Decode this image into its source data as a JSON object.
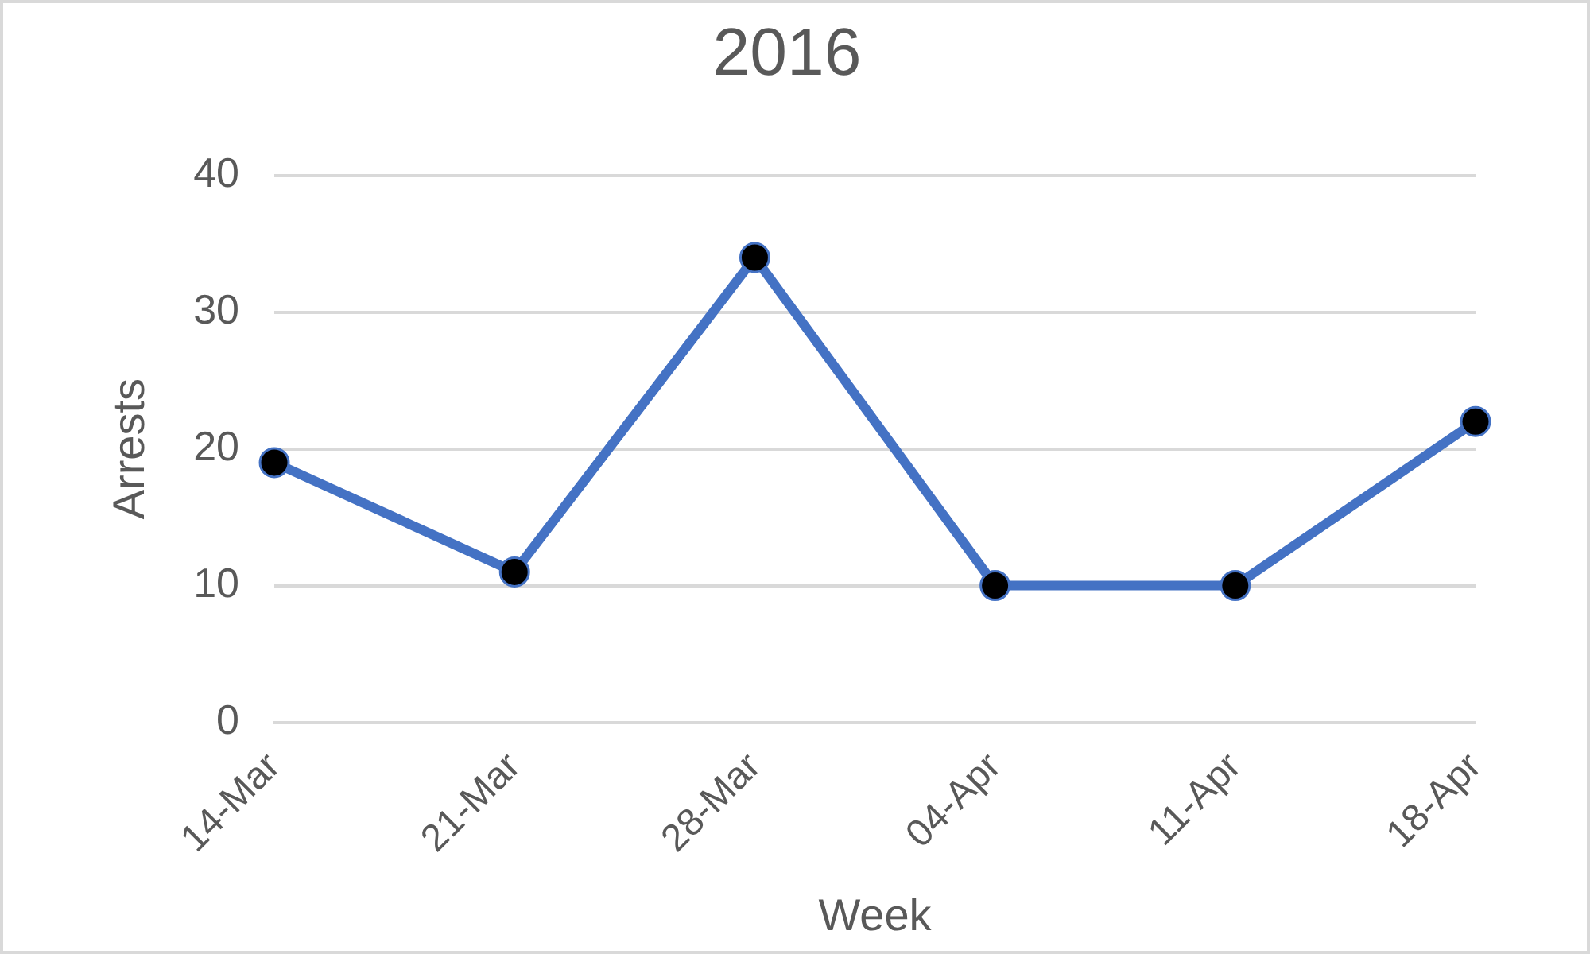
{
  "chart_data": {
    "type": "line",
    "title": "2016",
    "xlabel": "Week",
    "ylabel": "Arrests",
    "categories": [
      "14-Mar",
      "21-Mar",
      "28-Mar",
      "04-Apr",
      "11-Apr",
      "18-Apr"
    ],
    "series": [
      {
        "color": "#4472c4",
        "values": [
          19,
          11,
          34,
          10,
          10,
          22
        ]
      }
    ],
    "ylim": [
      0,
      40
    ],
    "yticks": [
      0,
      10,
      20,
      30,
      40
    ],
    "grid": "y",
    "legend": false,
    "marker": "circle",
    "line_style": "solid"
  }
}
